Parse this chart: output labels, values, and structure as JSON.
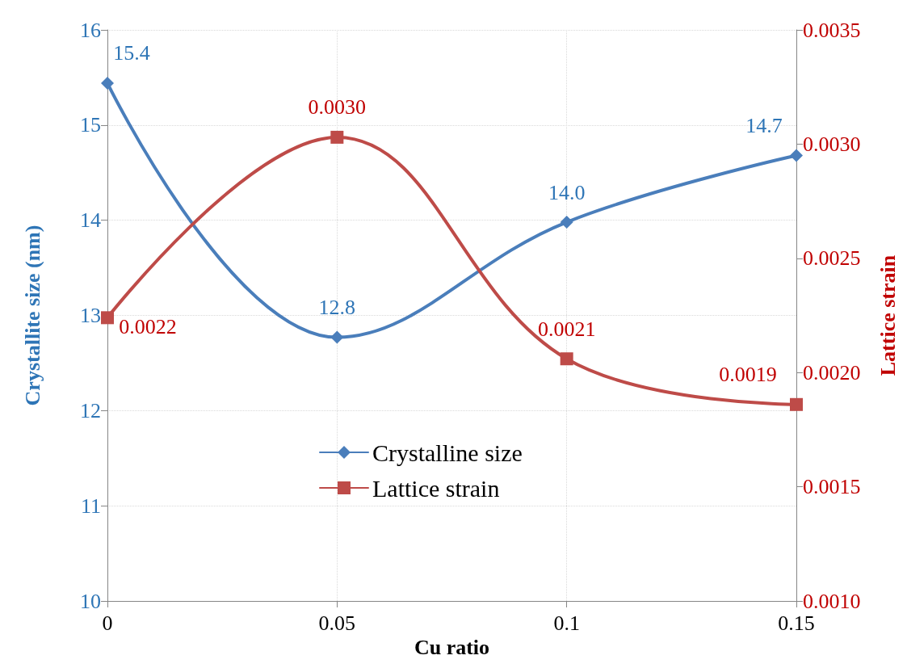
{
  "chart_data": {
    "type": "line",
    "xlabel": "Cu ratio",
    "ylabel": "Crystallite size (nm)",
    "y2label": "Lattice strain",
    "x": [
      0,
      0.05,
      0.1,
      0.15
    ],
    "xlim": [
      0,
      0.15
    ],
    "xticks": [
      0,
      0.05,
      0.1,
      0.15
    ],
    "ylim": [
      10,
      16
    ],
    "yticks": [
      10,
      11,
      12,
      13,
      14,
      15,
      16
    ],
    "y2lim": [
      0.001,
      0.0035
    ],
    "y2ticks": [
      {
        "value": 0.001,
        "label": "0.0010"
      },
      {
        "value": 0.0015,
        "label": "0.0015"
      },
      {
        "value": 0.002,
        "label": "0.0020"
      },
      {
        "value": 0.0025,
        "label": "0.0025"
      },
      {
        "value": 0.003,
        "label": "0.0030"
      },
      {
        "value": 0.0035,
        "label": "0.0035"
      }
    ],
    "series": [
      {
        "name": "Crystalline size",
        "color": "#4a7ebb",
        "marker": "diamond",
        "values": [
          15.44,
          12.77,
          13.98,
          14.68
        ],
        "value_labels": [
          "15.4",
          "12.8",
          "14.0",
          "14.7"
        ]
      },
      {
        "name": "Lattice strain",
        "color": "#be4b48",
        "marker": "square",
        "axis": "y2",
        "values": [
          0.00224,
          0.00303,
          0.00206,
          0.00186
        ],
        "value_labels": [
          "0.0022",
          "0.0030",
          "0.0021",
          "0.0019"
        ]
      }
    ],
    "grid": true,
    "legend": "center",
    "line_style": "solid"
  }
}
